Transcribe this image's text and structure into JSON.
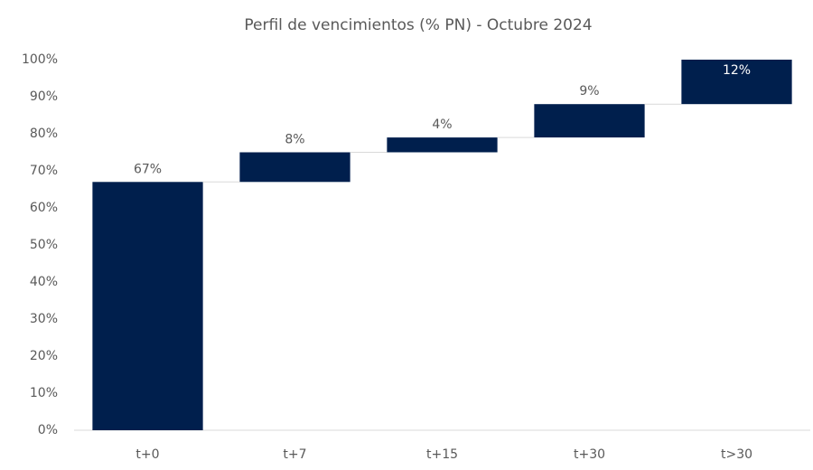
{
  "chart_data": {
    "type": "waterfall",
    "title": "Perfil de vencimientos (% PN) - Octubre 2024",
    "categories": [
      "t+0",
      "t+7",
      "t+15",
      "t+30",
      "t>30"
    ],
    "values": [
      67,
      8,
      4,
      9,
      12
    ],
    "value_labels": [
      "67%",
      "8%",
      "4%",
      "9%",
      "12%"
    ],
    "color": "#001f4d",
    "ylim": [
      0,
      100
    ],
    "yticks": [
      {
        "value": 0,
        "label": "0%"
      },
      {
        "value": 10,
        "label": "10%"
      },
      {
        "value": 20,
        "label": "20%"
      },
      {
        "value": 30,
        "label": "30%"
      },
      {
        "value": 40,
        "label": "40%"
      },
      {
        "value": 50,
        "label": "50%"
      },
      {
        "value": 60,
        "label": "60%"
      },
      {
        "value": 70,
        "label": "70%"
      },
      {
        "value": 80,
        "label": "80%"
      },
      {
        "value": 90,
        "label": "90%"
      },
      {
        "value": 100,
        "label": "100%"
      }
    ],
    "grid": false
  }
}
